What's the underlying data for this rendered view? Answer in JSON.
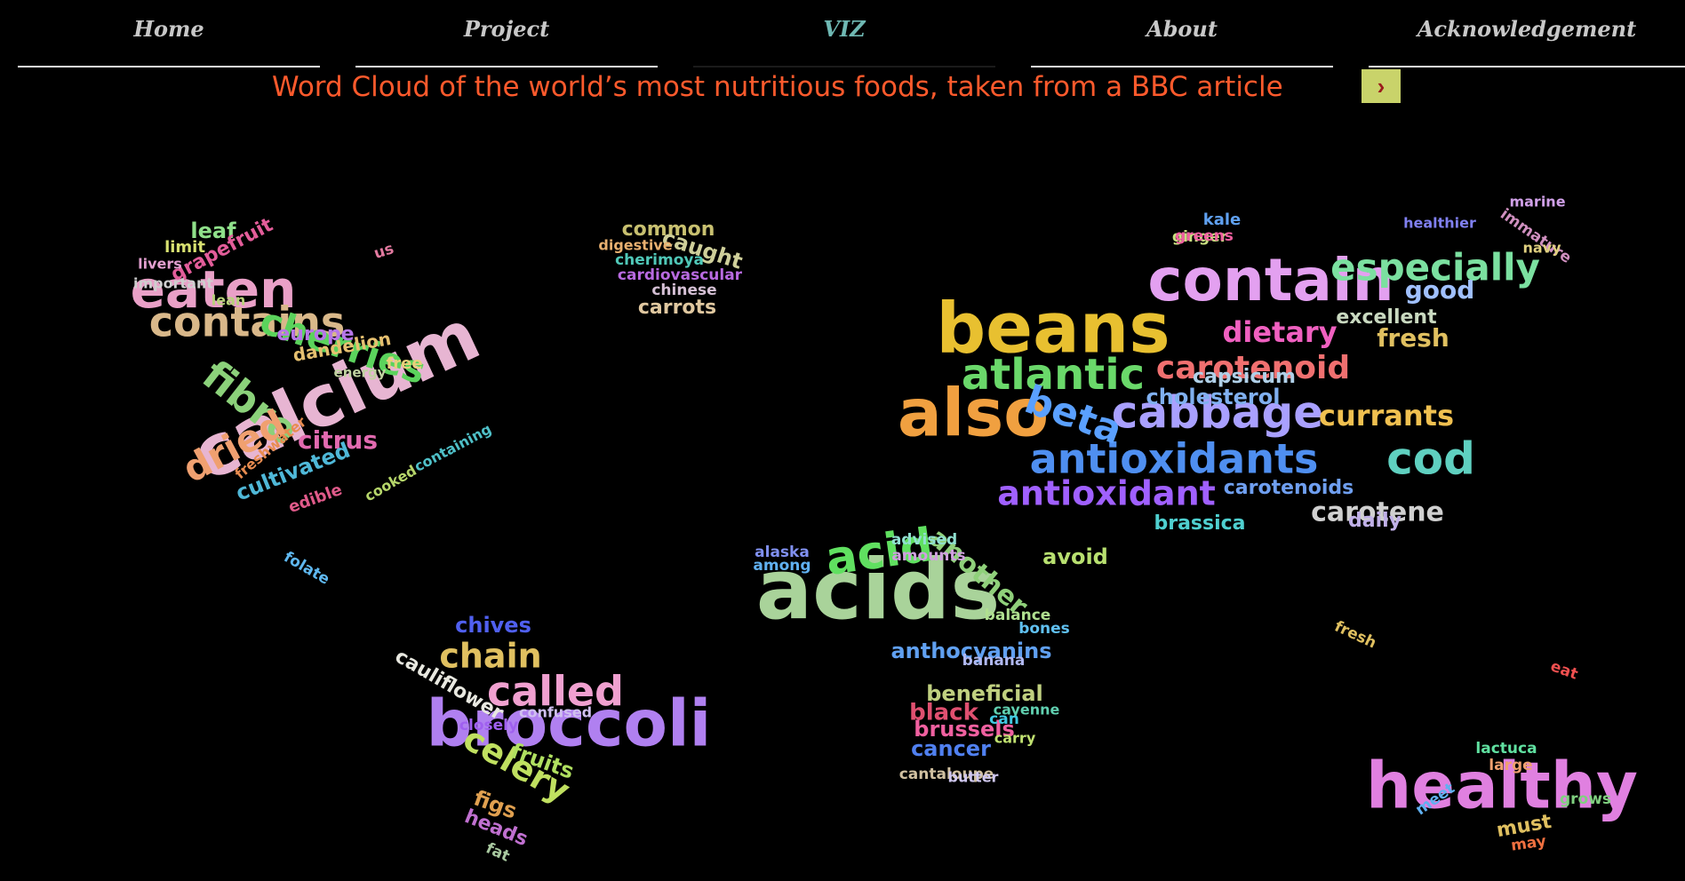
{
  "nav": {
    "items": [
      "Home",
      "Project",
      "VIZ",
      "About",
      "Acknowledgement"
    ],
    "active": "VIZ",
    "text_color": "#c8c8c8",
    "active_color": "#6fb8b3"
  },
  "title": {
    "text": "Word Cloud of the world’s most nutritious foods, taken from a BBC article",
    "color": "#ff5a2c"
  },
  "next_button": {
    "glyph": "›",
    "icon": "chevron-right-icon",
    "bg": "#c9d36a"
  },
  "cloud_words": [
    {
      "t": "eaten",
      "c": "#e9a0c7"
    },
    {
      "t": "contains",
      "c": "#d9b88a"
    },
    {
      "t": "calcium",
      "c": "#e7b5d2"
    },
    {
      "t": "cherries",
      "c": "#5bd35c"
    },
    {
      "t": "fibre",
      "c": "#8bd17a"
    },
    {
      "t": "dried",
      "c": "#f0a070"
    },
    {
      "t": "citrus",
      "c": "#e26ab0"
    },
    {
      "t": "cultivated",
      "c": "#4fb8d8"
    },
    {
      "t": "europe",
      "c": "#b777e8"
    },
    {
      "t": "dandelion",
      "c": "#e6c070"
    },
    {
      "t": "leaf",
      "c": "#8fe08a"
    },
    {
      "t": "grapefruit",
      "c": "#e35d9a"
    },
    {
      "t": "limit",
      "c": "#d7e070"
    },
    {
      "t": "livers",
      "c": "#e3a0d0"
    },
    {
      "t": "important",
      "c": "#cfcfcf"
    },
    {
      "t": "lean",
      "c": "#b8d27a"
    },
    {
      "t": "free",
      "c": "#e8d07a"
    },
    {
      "t": "energy",
      "c": "#c0d2a0"
    },
    {
      "t": "freshwater",
      "c": "#e88c50"
    },
    {
      "t": "cooked",
      "c": "#b5d56a"
    },
    {
      "t": "containing",
      "c": "#4fc0c8"
    },
    {
      "t": "edible",
      "c": "#e05a8a"
    },
    {
      "t": "folate",
      "c": "#5fb8f0"
    },
    {
      "t": "us",
      "c": "#e37aa0"
    },
    {
      "t": "common",
      "c": "#c8c070"
    },
    {
      "t": "caught",
      "c": "#cfcf9a"
    },
    {
      "t": "digestive",
      "c": "#e8b070"
    },
    {
      "t": "cherimoya",
      "c": "#50c8b8"
    },
    {
      "t": "cardiovascular",
      "c": "#b86ae0"
    },
    {
      "t": "chinese",
      "c": "#d5c0d5"
    },
    {
      "t": "carrots",
      "c": "#e0c8a0"
    },
    {
      "t": "contain",
      "c": "#e3a0f0"
    },
    {
      "t": "beans",
      "c": "#e8c030"
    },
    {
      "t": "also",
      "c": "#f0a040"
    },
    {
      "t": "atlantic",
      "c": "#6ad86a"
    },
    {
      "t": "cabbage",
      "c": "#a9a0ff"
    },
    {
      "t": "antioxidants",
      "c": "#4f8ff0"
    },
    {
      "t": "antioxidant",
      "c": "#a060ff"
    },
    {
      "t": "beta",
      "c": "#5aa0ff"
    },
    {
      "t": "carotenoid",
      "c": "#f07070"
    },
    {
      "t": "dietary",
      "c": "#f060c0"
    },
    {
      "t": "especially",
      "c": "#7be0a0"
    },
    {
      "t": "good",
      "c": "#a0c0ff"
    },
    {
      "t": "fresh",
      "c": "#e0c060"
    },
    {
      "t": "excellent",
      "c": "#c9d9c0"
    },
    {
      "t": "cod",
      "c": "#5fd0c0"
    },
    {
      "t": "currants",
      "c": "#f0c050"
    },
    {
      "t": "carotene",
      "c": "#d0d0d0"
    },
    {
      "t": "carotenoids",
      "c": "#6f9ff0"
    },
    {
      "t": "capsicum",
      "c": "#b0d0e8"
    },
    {
      "t": "cholesterol",
      "c": "#80b0f0"
    },
    {
      "t": "brassica",
      "c": "#4fd0d0"
    },
    {
      "t": "daily",
      "c": "#c0b0e8"
    },
    {
      "t": "kale",
      "c": "#5fa0f0"
    },
    {
      "t": "ginger",
      "c": "#c8e080"
    },
    {
      "t": "greens",
      "c": "#f060a0"
    },
    {
      "t": "marine",
      "c": "#d0a0e8"
    },
    {
      "t": "immature",
      "c": "#d090c0"
    },
    {
      "t": "navy",
      "c": "#e0d080"
    },
    {
      "t": "healthier",
      "c": "#8080f0"
    },
    {
      "t": "acids",
      "c": "#a9d39a"
    },
    {
      "t": "acid",
      "c": "#60e060"
    },
    {
      "t": "another",
      "c": "#8fd07a"
    },
    {
      "t": "avoid",
      "c": "#b8e070"
    },
    {
      "t": "advised",
      "c": "#90e0d0"
    },
    {
      "t": "amounts",
      "c": "#d0a0e0"
    },
    {
      "t": "alaska",
      "c": "#8090f0"
    },
    {
      "t": "among",
      "c": "#60b0f0"
    },
    {
      "t": "anthocyanins",
      "c": "#60a0f0"
    },
    {
      "t": "balance",
      "c": "#b0e090"
    },
    {
      "t": "bones",
      "c": "#60c0f0"
    },
    {
      "t": "banana",
      "c": "#b0b8f0"
    },
    {
      "t": "beneficial",
      "c": "#c0d080"
    },
    {
      "t": "black",
      "c": "#e05070"
    },
    {
      "t": "brussels",
      "c": "#f060a0"
    },
    {
      "t": "cancer",
      "c": "#5080f0"
    },
    {
      "t": "cantaloupe",
      "c": "#d0c0a0"
    },
    {
      "t": "butter",
      "c": "#d0c8f0"
    },
    {
      "t": "carry",
      "c": "#c0e070"
    },
    {
      "t": "cayenne",
      "c": "#60d0b0"
    },
    {
      "t": "can",
      "c": "#40c8e0"
    },
    {
      "t": "broccoli",
      "c": "#b080f0"
    },
    {
      "t": "called",
      "c": "#f0a0d0"
    },
    {
      "t": "chain",
      "c": "#e0c060"
    },
    {
      "t": "chives",
      "c": "#5060f0"
    },
    {
      "t": "cauliflower",
      "c": "#e8e8e0"
    },
    {
      "t": "confused",
      "c": "#d0c0f0"
    },
    {
      "t": "closely",
      "c": "#a060f0"
    },
    {
      "t": "celery",
      "c": "#c0e060"
    },
    {
      "t": "fruits",
      "c": "#b0e060"
    },
    {
      "t": "figs",
      "c": "#e0a050"
    },
    {
      "t": "heads",
      "c": "#c070d0"
    },
    {
      "t": "fat",
      "c": "#a9c9a0"
    },
    {
      "t": "healthy",
      "c": "#e080e0"
    },
    {
      "t": "lactuca",
      "c": "#60e0a0"
    },
    {
      "t": "large",
      "c": "#f0a070"
    },
    {
      "t": "meet",
      "c": "#60b0f0"
    },
    {
      "t": "grows",
      "c": "#80d080"
    },
    {
      "t": "must",
      "c": "#e0c060"
    },
    {
      "t": "may",
      "c": "#f07040"
    },
    {
      "t": "eat",
      "c": "#f05050"
    },
    {
      "t": "fresh",
      "c": "#e0c060"
    }
  ]
}
